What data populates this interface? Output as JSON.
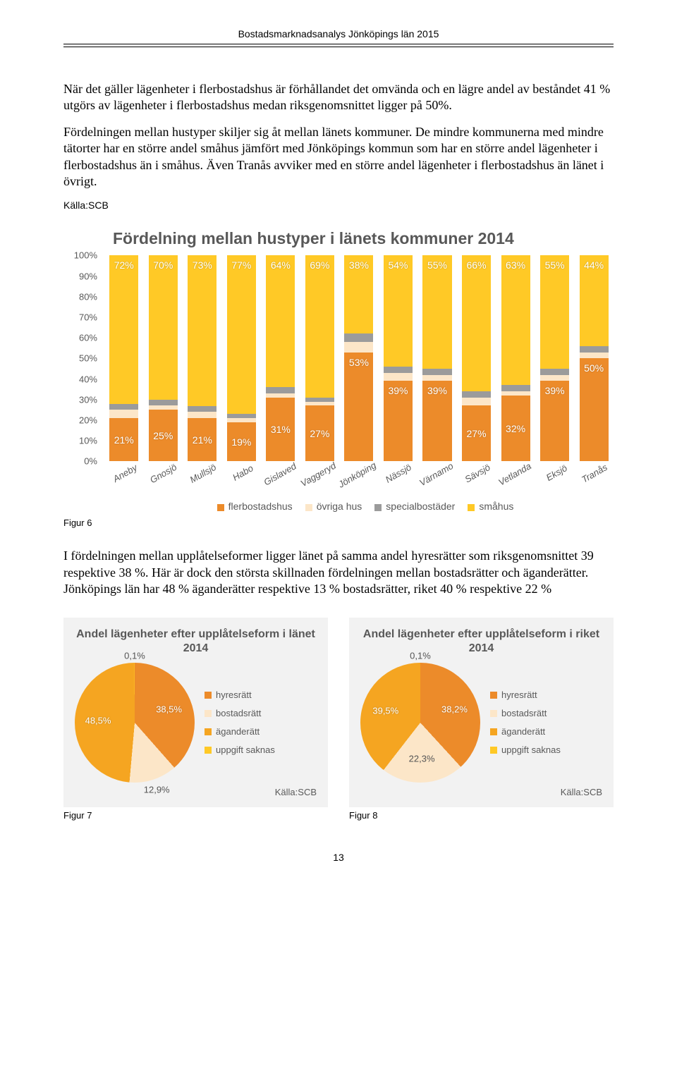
{
  "header": "Bostadsmarknadsanalys Jönköpings län 2015",
  "para1": "När det gäller lägenheter i flerbostadshus är förhållandet det omvända och en lägre andel av beståndet 41 % utgörs av lägenheter i flerbostadshus medan riksgenomsnittet ligger på 50%.",
  "para2": "Fördelningen mellan hustyper skiljer sig åt mellan länets kommuner. De mindre kommunerna med mindre tätorter har en större andel småhus jämfört med Jönköpings kommun som har en större andel lägenheter i flerbostadshus än i småhus. Även Tranås avviker med en större andel lägenheter i flerbostadshus än länet i övrigt.",
  "source_label": "Källa:SCB",
  "chart1": {
    "title": "Fördelning mellan hustyper i länets kommuner 2014",
    "yticks": [
      "0%",
      "10%",
      "20%",
      "30%",
      "40%",
      "50%",
      "60%",
      "70%",
      "80%",
      "90%",
      "100%"
    ],
    "series_colors": {
      "flerbostadshus": "#ec8b2a",
      "ovriga_hus": "#fce6c8",
      "specialbostader": "#9b9b9b",
      "smahus": "#ffc926"
    },
    "legend": [
      {
        "key": "flerbostadshus",
        "label": "flerbostadshus"
      },
      {
        "key": "ovriga_hus",
        "label": "övriga hus"
      },
      {
        "key": "specialbostader",
        "label": "specialbostäder"
      },
      {
        "key": "smahus",
        "label": "småhus"
      }
    ],
    "categories": [
      "Aneby",
      "Gnosjö",
      "Mullsjö",
      "Habo",
      "Gislaved",
      "Vaggeryd",
      "Jönköping",
      "Nässjö",
      "Värnamo",
      "Sävsjö",
      "Vetlanda",
      "Eksjö",
      "Tranås"
    ],
    "smahus_labels": [
      "72%",
      "70%",
      "73%",
      "77%",
      "64%",
      "69%",
      "38%",
      "54%",
      "55%",
      "66%",
      "63%",
      "55%",
      "44%"
    ],
    "fler_labels": [
      "21%",
      "25%",
      "21%",
      "19%",
      "31%",
      "27%",
      "53%",
      "39%",
      "39%",
      "27%",
      "32%",
      "39%",
      "50%"
    ],
    "stacks": [
      {
        "f": 21,
        "o": 4,
        "s": 3,
        "m": 72
      },
      {
        "f": 25,
        "o": 2,
        "s": 3,
        "m": 70
      },
      {
        "f": 21,
        "o": 3,
        "s": 3,
        "m": 73
      },
      {
        "f": 19,
        "o": 2,
        "s": 2,
        "m": 77
      },
      {
        "f": 31,
        "o": 2,
        "s": 3,
        "m": 64
      },
      {
        "f": 27,
        "o": 2,
        "s": 2,
        "m": 69
      },
      {
        "f": 53,
        "o": 5,
        "s": 4,
        "m": 38
      },
      {
        "f": 39,
        "o": 4,
        "s": 3,
        "m": 54
      },
      {
        "f": 39,
        "o": 3,
        "s": 3,
        "m": 55
      },
      {
        "f": 27,
        "o": 4,
        "s": 3,
        "m": 66
      },
      {
        "f": 32,
        "o": 2,
        "s": 3,
        "m": 63
      },
      {
        "f": 39,
        "o": 3,
        "s": 3,
        "m": 55
      },
      {
        "f": 50,
        "o": 3,
        "s": 3,
        "m": 44
      }
    ]
  },
  "figure6": "Figur 6",
  "para3": "I fördelningen mellan upplåtelseformer ligger länet på samma andel hyresrätter som riksgenomsnittet 39 respektive 38 %. Här är dock den största skillnaden fördelningen mellan bostadsrätter och äganderätter. Jönköpings län har 48 % äganderätter respektive 13 % bostadsrätter, riket 40 % respektive 22 %",
  "pies": {
    "legend": [
      {
        "c": "#ec8b2a",
        "label": "hyresrätt"
      },
      {
        "c": "#fce6c8",
        "label": "bostadsrätt"
      },
      {
        "c": "#f5a521",
        "label": "äganderätt"
      },
      {
        "c": "#ffc926",
        "label": "uppgift saknas"
      }
    ],
    "left": {
      "title": "Andel lägenheter efter upplåtelseform i länet 2014",
      "slices": [
        {
          "c": "#ec8b2a",
          "v": 38.5,
          "lbl": "38,5%"
        },
        {
          "c": "#fce6c8",
          "v": 12.9,
          "lbl": "12,9%"
        },
        {
          "c": "#f5a521",
          "v": 48.5,
          "lbl": "48,5%"
        },
        {
          "c": "#ffc926",
          "v": 0.1,
          "lbl": "0,1%"
        }
      ]
    },
    "right": {
      "title": "Andel lägenheter efter upplåtelseform i riket 2014",
      "slices": [
        {
          "c": "#ec8b2a",
          "v": 38.2,
          "lbl": "38,2%"
        },
        {
          "c": "#fce6c8",
          "v": 22.3,
          "lbl": "22,3%"
        },
        {
          "c": "#f5a521",
          "v": 39.5,
          "lbl": "39,5%"
        },
        {
          "c": "#ffc926",
          "v": 0.1,
          "lbl": "0,1%"
        }
      ]
    }
  },
  "figure7": "Figur 7",
  "figure8": "Figur 8",
  "page_number": "13"
}
